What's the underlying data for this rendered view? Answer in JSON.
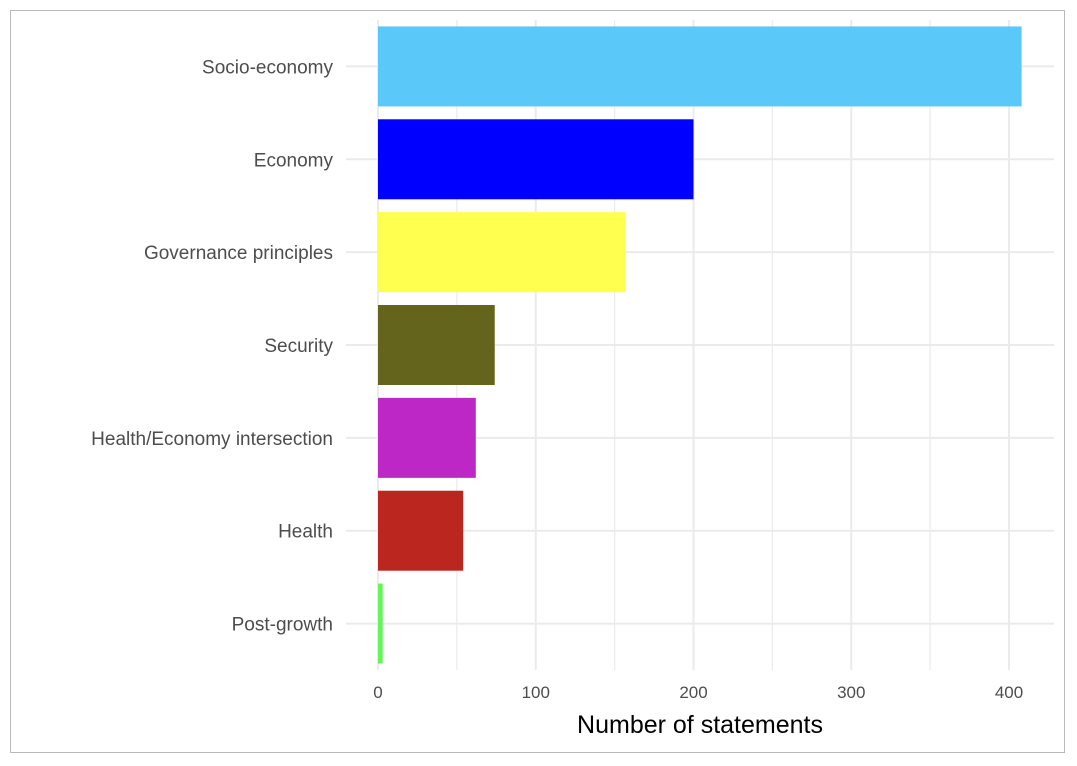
{
  "chart_data": {
    "type": "bar",
    "orientation": "horizontal",
    "title": "",
    "xlabel": "Number of statements",
    "ylabel": "",
    "xlim": [
      0,
      425
    ],
    "x_ticks": [
      0,
      100,
      200,
      300,
      400
    ],
    "grid": true,
    "legend": "none",
    "categories": [
      "Socio-economy",
      "Economy",
      "Governance principles",
      "Security",
      "Health/Economy intersection",
      "Health",
      "Post-growth"
    ],
    "values": [
      408,
      200,
      157,
      74,
      62,
      54,
      3
    ],
    "colors": [
      "#5bc8fa",
      "#0000fe",
      "#ffff4f",
      "#65641c",
      "#bc27c6",
      "#bb271e",
      "#66f45a"
    ]
  },
  "colors": {
    "grid": "#ebebeb",
    "frame_border": "#b9b9b9"
  }
}
